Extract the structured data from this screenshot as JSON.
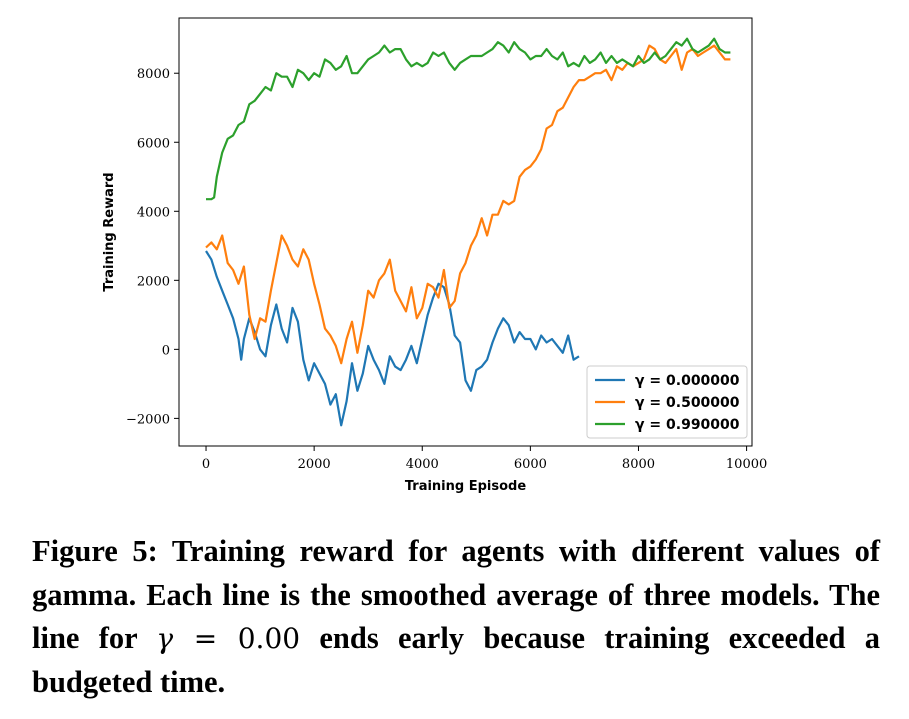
{
  "chart_data": {
    "type": "line",
    "xlabel": "Training Episode",
    "ylabel": "Training Reward",
    "xlim": [
      -500,
      10100
    ],
    "ylim": [
      -2800,
      9600
    ],
    "xticks": [
      0,
      2000,
      4000,
      6000,
      8000,
      10000
    ],
    "yticks": [
      -2000,
      0,
      2000,
      4000,
      6000,
      8000
    ],
    "xtick_labels": [
      "0",
      "2000",
      "4000",
      "6000",
      "8000",
      "10000"
    ],
    "ytick_labels": [
      "−2000",
      "0",
      "2000",
      "4000",
      "6000",
      "8000"
    ],
    "legend_position": "lower-right",
    "series": [
      {
        "name": "γ = 0.000000",
        "color": "#1f77b4",
        "x": [
          0,
          100,
          200,
          300,
          400,
          500,
          600,
          650,
          700,
          800,
          900,
          1000,
          1100,
          1200,
          1300,
          1400,
          1500,
          1600,
          1700,
          1800,
          1900,
          2000,
          2100,
          2200,
          2300,
          2400,
          2500,
          2600,
          2700,
          2800,
          2900,
          3000,
          3100,
          3200,
          3300,
          3400,
          3500,
          3600,
          3700,
          3800,
          3900,
          4000,
          4100,
          4200,
          4300,
          4400,
          4500,
          4600,
          4700,
          4800,
          4900,
          5000,
          5100,
          5200,
          5300,
          5400,
          5500,
          5600,
          5700,
          5800,
          5900,
          6000,
          6100,
          6200,
          6300,
          6400,
          6500,
          6600,
          6700,
          6800,
          6900
        ],
        "y": [
          2850,
          2600,
          2100,
          1700,
          1300,
          900,
          300,
          -300,
          300,
          900,
          500,
          0,
          -200,
          700,
          1300,
          600,
          200,
          1200,
          800,
          -300,
          -900,
          -400,
          -700,
          -1000,
          -1600,
          -1300,
          -2200,
          -1500,
          -400,
          -1200,
          -700,
          100,
          -300,
          -600,
          -1000,
          -200,
          -500,
          -600,
          -300,
          100,
          -400,
          300,
          1000,
          1500,
          1900,
          1800,
          1300,
          400,
          200,
          -900,
          -1200,
          -600,
          -500,
          -300,
          200,
          600,
          900,
          700,
          200,
          500,
          300,
          300,
          0,
          400,
          200,
          300,
          100,
          -100,
          400,
          -300,
          -200
        ]
      },
      {
        "name": "γ = 0.500000",
        "color": "#ff7f0e",
        "x": [
          0,
          100,
          200,
          300,
          400,
          500,
          600,
          700,
          800,
          900,
          1000,
          1100,
          1200,
          1300,
          1400,
          1500,
          1600,
          1700,
          1800,
          1900,
          2000,
          2100,
          2200,
          2300,
          2400,
          2500,
          2600,
          2700,
          2800,
          2900,
          3000,
          3100,
          3200,
          3300,
          3400,
          3500,
          3600,
          3700,
          3800,
          3900,
          4000,
          4100,
          4200,
          4300,
          4400,
          4500,
          4600,
          4700,
          4800,
          4900,
          5000,
          5100,
          5200,
          5300,
          5400,
          5500,
          5600,
          5700,
          5800,
          5900,
          6000,
          6100,
          6200,
          6300,
          6400,
          6500,
          6600,
          6700,
          6800,
          6900,
          7000,
          7100,
          7200,
          7300,
          7400,
          7500,
          7600,
          7700,
          7800,
          7900,
          8000,
          8100,
          8200,
          8300,
          8400,
          8500,
          8600,
          8700,
          8800,
          8900,
          9000,
          9100,
          9200,
          9300,
          9400,
          9500,
          9600,
          9700
        ],
        "y": [
          2950,
          3100,
          2900,
          3300,
          2500,
          2300,
          1900,
          2400,
          1000,
          300,
          900,
          800,
          1700,
          2500,
          3300,
          3000,
          2600,
          2400,
          2900,
          2600,
          1900,
          1300,
          600,
          400,
          100,
          -400,
          300,
          800,
          -100,
          700,
          1700,
          1500,
          2000,
          2200,
          2600,
          1700,
          1400,
          1100,
          1800,
          900,
          1200,
          1900,
          1800,
          1500,
          2300,
          1200,
          1400,
          2200,
          2500,
          3000,
          3300,
          3800,
          3300,
          3900,
          3900,
          4300,
          4200,
          4300,
          5000,
          5200,
          5300,
          5500,
          5800,
          6400,
          6500,
          6900,
          7000,
          7300,
          7600,
          7800,
          7800,
          7900,
          8000,
          8000,
          8100,
          7800,
          8200,
          8100,
          8300,
          8200,
          8300,
          8400,
          8800,
          8700,
          8400,
          8300,
          8500,
          8700,
          8100,
          8600,
          8700,
          8500,
          8600,
          8700,
          8800,
          8600,
          8400,
          8400
        ]
      },
      {
        "name": "γ = 0.990000",
        "color": "#2ca02c",
        "x": [
          0,
          100,
          150,
          200,
          300,
          400,
          500,
          600,
          700,
          800,
          900,
          1000,
          1100,
          1200,
          1300,
          1400,
          1500,
          1600,
          1700,
          1800,
          1900,
          2000,
          2100,
          2200,
          2300,
          2400,
          2500,
          2600,
          2700,
          2800,
          2900,
          3000,
          3100,
          3200,
          3300,
          3400,
          3500,
          3600,
          3700,
          3800,
          3900,
          4000,
          4100,
          4200,
          4300,
          4400,
          4500,
          4600,
          4700,
          4800,
          4900,
          5000,
          5100,
          5200,
          5300,
          5400,
          5500,
          5600,
          5700,
          5800,
          5900,
          6000,
          6100,
          6200,
          6300,
          6400,
          6500,
          6600,
          6700,
          6800,
          6900,
          7000,
          7100,
          7200,
          7300,
          7400,
          7500,
          7600,
          7700,
          7800,
          7900,
          8000,
          8100,
          8200,
          8300,
          8400,
          8500,
          8600,
          8700,
          8800,
          8900,
          9000,
          9100,
          9200,
          9300,
          9400,
          9500,
          9600,
          9700
        ],
        "y": [
          4350,
          4350,
          4400,
          5000,
          5700,
          6100,
          6200,
          6500,
          6600,
          7100,
          7200,
          7400,
          7600,
          7500,
          8000,
          7900,
          7900,
          7600,
          8100,
          8000,
          7800,
          8000,
          7900,
          8400,
          8300,
          8100,
          8200,
          8500,
          8000,
          8000,
          8200,
          8400,
          8500,
          8600,
          8800,
          8600,
          8700,
          8700,
          8400,
          8200,
          8300,
          8200,
          8300,
          8600,
          8500,
          8600,
          8300,
          8100,
          8300,
          8400,
          8500,
          8500,
          8500,
          8600,
          8700,
          8900,
          8800,
          8600,
          8900,
          8700,
          8600,
          8400,
          8500,
          8500,
          8700,
          8500,
          8400,
          8600,
          8200,
          8300,
          8200,
          8500,
          8300,
          8400,
          8600,
          8300,
          8500,
          8300,
          8400,
          8300,
          8200,
          8500,
          8300,
          8400,
          8600,
          8400,
          8500,
          8700,
          8900,
          8800,
          9000,
          8700,
          8600,
          8700,
          8800,
          9000,
          8700,
          8600,
          8600
        ]
      }
    ]
  },
  "caption": {
    "lead": "Figure 5: Training reward for agents with different values of gamma.  Each line is the smoothed average of three models. The line for ",
    "math_symbol": "γ",
    "math_rest": " = 0.00",
    "tail": " ends early because training exceeded a budgeted time."
  }
}
